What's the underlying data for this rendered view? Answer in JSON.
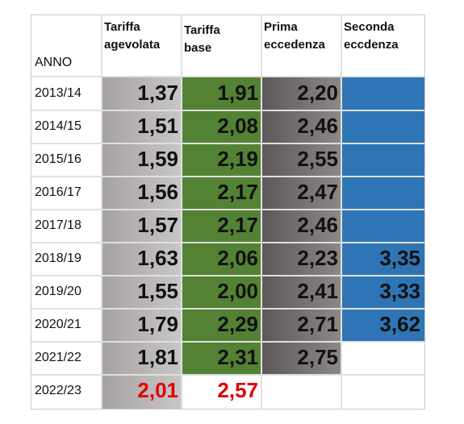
{
  "chart_data": {
    "type": "table",
    "headers": {
      "anno": "ANNO",
      "agevolata": "Tariffa\nagevolata",
      "base": "Tariffa\nbase",
      "prima": "Prima\neccedenza",
      "seconda": "Seconda\neccdenza"
    },
    "rows": [
      {
        "anno": "2013/14",
        "agevolata": "1,37",
        "base": "1,91",
        "prima": "2,20",
        "seconda": ""
      },
      {
        "anno": "2014/15",
        "agevolata": "1,51",
        "base": "2,08",
        "prima": "2,46",
        "seconda": ""
      },
      {
        "anno": "2015/16",
        "agevolata": "1,59",
        "base": "2,19",
        "prima": "2,55",
        "seconda": ""
      },
      {
        "anno": "2016/17",
        "agevolata": "1,56",
        "base": "2,17",
        "prima": "2,47",
        "seconda": ""
      },
      {
        "anno": "2017/18",
        "agevolata": "1,57",
        "base": "2,17",
        "prima": "2,46",
        "seconda": ""
      },
      {
        "anno": "2018/19",
        "agevolata": "1,63",
        "base": "2,06",
        "prima": "2,23",
        "seconda": "3,35"
      },
      {
        "anno": "2019/20",
        "agevolata": "1,55",
        "base": "2,00",
        "prima": "2,41",
        "seconda": "3,33"
      },
      {
        "anno": "2020/21",
        "agevolata": "1,79",
        "base": "2,29",
        "prima": "2,71",
        "seconda": "3,62"
      },
      {
        "anno": "2021/22",
        "agevolata": "1,81",
        "base": "2,31",
        "prima": "2,75",
        "seconda": ""
      },
      {
        "anno": "2022/23",
        "agevolata": "2,01",
        "base": "2,57",
        "prima": "",
        "seconda": ""
      }
    ],
    "highlight_rows": [
      "2022/23"
    ],
    "colors": {
      "agevolata": "#b3aeae",
      "base": "#548235",
      "prima": "#767171",
      "seconda": "#2e75b6",
      "highlight": "#e00000"
    }
  }
}
